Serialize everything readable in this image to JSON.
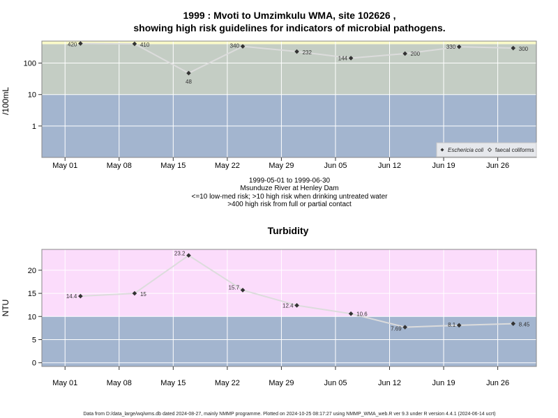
{
  "title_line1": "1999 : Mvoti to Umzimkulu WMA, site 102626 ,",
  "title_line2": "showing high risk guidelines for indicators of microbial pathogens.",
  "caption": [
    "1999-05-01 to 1999-06-30",
    "Msunduze River at Henley Dam",
    "<=10 low-med risk; >10 high risk when drinking untreated water",
    ">400 high risk from full or partial contact"
  ],
  "footer": "Data from D:/data_large/wq/wms.db dated 2024-08-27, mainly NMMP programme. Plotted on 2024-10-25 08:17:27 using NMMP_WMA_web.R ver 9.3 under R version 4.4.1 (2024-06-14 ucrt)",
  "colors": {
    "low_band": "#a3b5cf",
    "mid_band": "#c4cdc4",
    "high_band_micro": "#fafac8",
    "high_band_turb": "#fbdcfb",
    "line": "#dcdcdc",
    "point": "#333333"
  },
  "chart_data": [
    {
      "type": "line",
      "title": "",
      "ylabel": "/100mL",
      "xlabel": "",
      "y_scale": "log",
      "ylim": [
        0.1,
        500
      ],
      "y_ticks": [
        1,
        10,
        100
      ],
      "y_tick_labels": [
        "1",
        "10",
        "100"
      ],
      "x_ticks": [
        "1999-05-01",
        "1999-05-08",
        "1999-05-15",
        "1999-05-22",
        "1999-05-29",
        "1999-06-05",
        "1999-06-12",
        "1999-06-19",
        "1999-06-26"
      ],
      "x_tick_labels": [
        "May 01",
        "May 08",
        "May 15",
        "May 22",
        "May 29",
        "Jun 05",
        "Jun 12",
        "Jun 19",
        "Jun 26"
      ],
      "xlim": [
        "1999-04-28",
        "1999-07-01"
      ],
      "thresholds": [
        10,
        400
      ],
      "grid": true,
      "legend_position": "bottom-right",
      "series": [
        {
          "name": "Eschericia coli",
          "x": [
            "1999-05-03",
            "1999-05-10",
            "1999-05-17",
            "1999-05-24",
            "1999-05-31",
            "1999-06-07",
            "1999-06-14",
            "1999-06-21",
            "1999-06-28"
          ],
          "values": [
            420,
            410,
            48,
            340,
            232,
            144,
            200,
            330,
            300
          ],
          "labels": [
            "420",
            "410",
            "48",
            "340",
            "232",
            "144",
            "200",
            "330",
            "300"
          ]
        },
        {
          "name": "faecal coliforms",
          "x": [],
          "values": [],
          "labels": []
        }
      ]
    },
    {
      "type": "line",
      "title": "Turbidity",
      "ylabel": "NTU",
      "xlabel": "",
      "y_scale": "linear",
      "ylim": [
        -0.8,
        24.5
      ],
      "y_ticks": [
        0,
        5,
        10,
        15,
        20
      ],
      "y_tick_labels": [
        "0",
        "5",
        "10",
        "15",
        "20"
      ],
      "x_ticks": [
        "1999-05-01",
        "1999-05-08",
        "1999-05-15",
        "1999-05-22",
        "1999-05-29",
        "1999-06-05",
        "1999-06-12",
        "1999-06-19",
        "1999-06-26"
      ],
      "x_tick_labels": [
        "May 01",
        "May 08",
        "May 15",
        "May 22",
        "May 29",
        "Jun 05",
        "Jun 12",
        "Jun 19",
        "Jun 26"
      ],
      "xlim": [
        "1999-04-28",
        "1999-07-01"
      ],
      "thresholds": [
        10
      ],
      "grid": true,
      "series": [
        {
          "name": "",
          "x": [
            "1999-05-03",
            "1999-05-10",
            "1999-05-17",
            "1999-05-24",
            "1999-05-31",
            "1999-06-07",
            "1999-06-14",
            "1999-06-21",
            "1999-06-28"
          ],
          "values": [
            14.4,
            15,
            23.2,
            15.7,
            12.4,
            10.6,
            7.69,
            8.1,
            8.45
          ],
          "labels": [
            "14.4",
            "15",
            "23.2",
            "15.7",
            "12.4",
            "10.6",
            "7.69",
            "8.1",
            "8.45"
          ]
        }
      ]
    }
  ]
}
